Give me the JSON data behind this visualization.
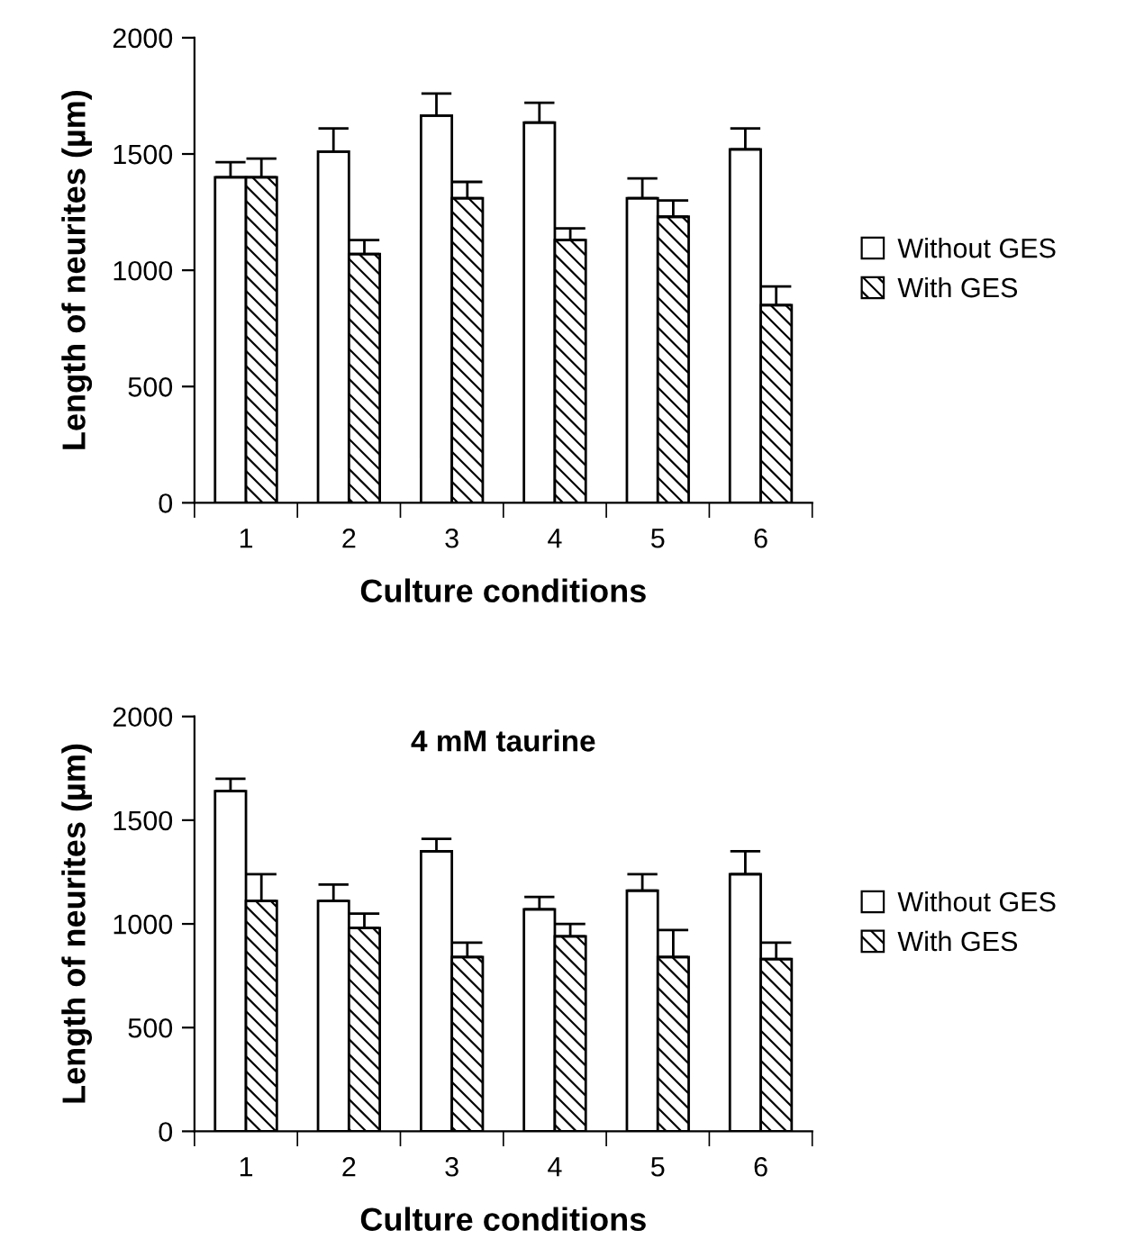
{
  "chart_data": [
    {
      "type": "bar",
      "xlabel": "Culture conditions",
      "ylabel": "Length of neurites (µm)",
      "categories": [
        "1",
        "2",
        "3",
        "4",
        "5",
        "6"
      ],
      "ylim": [
        0,
        2000
      ],
      "yticks": [
        0,
        500,
        1000,
        1500,
        2000
      ],
      "grid": false,
      "legend": "right",
      "series": [
        {
          "name": "Without GES",
          "color": "#ffffff",
          "values": [
            1400,
            1510,
            1665,
            1635,
            1310,
            1520
          ],
          "errors": [
            [
              1400,
              1465
            ],
            [
              1510,
              1610
            ],
            [
              1665,
              1760
            ],
            [
              1635,
              1720
            ],
            [
              1310,
              1395
            ],
            [
              1520,
              1610
            ]
          ]
        },
        {
          "name": "With GES",
          "color": "#000000",
          "values": [
            1400,
            1070,
            1310,
            1130,
            1230,
            850
          ],
          "errors": [
            [
              1400,
              1480
            ],
            [
              1070,
              1130
            ],
            [
              1310,
              1380
            ],
            [
              1130,
              1180
            ],
            [
              1230,
              1300
            ],
            [
              850,
              930
            ]
          ]
        }
      ]
    },
    {
      "type": "bar",
      "title": "4 mM taurine",
      "xlabel": "Culture conditions",
      "ylabel": "Length of neurites (µm)",
      "categories": [
        "1",
        "2",
        "3",
        "4",
        "5",
        "6"
      ],
      "ylim": [
        0,
        2000
      ],
      "yticks": [
        0,
        500,
        1000,
        1500,
        2000
      ],
      "grid": false,
      "legend": "right",
      "series": [
        {
          "name": "Without GES",
          "color": "#ffffff",
          "values": [
            1640,
            1110,
            1350,
            1070,
            1160,
            1240
          ],
          "errors": [
            [
              1640,
              1700
            ],
            [
              1110,
              1190
            ],
            [
              1350,
              1410
            ],
            [
              1070,
              1130
            ],
            [
              1160,
              1240
            ],
            [
              1240,
              1350
            ]
          ]
        },
        {
          "name": "With GES",
          "color": "#000000",
          "values": [
            1110,
            980,
            840,
            940,
            840,
            830
          ],
          "errors": [
            [
              1110,
              1240
            ],
            [
              980,
              1050
            ],
            [
              840,
              910
            ],
            [
              940,
              1000
            ],
            [
              840,
              970
            ],
            [
              830,
              910
            ]
          ]
        }
      ]
    }
  ]
}
